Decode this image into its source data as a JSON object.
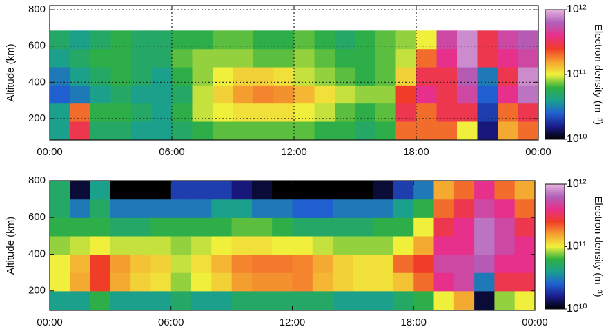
{
  "chart_data": [
    {
      "type": "heatmap",
      "y_label": "Altitude (km)",
      "x": [
        0.5,
        1.5,
        2.5,
        3.5,
        4.5,
        5.5,
        6.5,
        7.5,
        8.5,
        9.5,
        10.5,
        11.5,
        12.5,
        13.5,
        14.5,
        15.5,
        16.5,
        17.5,
        18.5,
        19.5,
        20.5,
        21.5,
        22.5,
        23.5
      ],
      "y": [
        135,
        235,
        335,
        435,
        535,
        635
      ],
      "values": [
        [
          40000000000.0,
          300000000000.0,
          50000000000.0,
          50000000000.0,
          40000000000.0,
          40000000000.0,
          50000000000.0,
          60000000000.0,
          70000000000.0,
          70000000000.0,
          70000000000.0,
          70000000000.0,
          70000000000.0,
          60000000000.0,
          60000000000.0,
          50000000000.0,
          60000000000.0,
          200000000000.0,
          200000000000.0,
          200000000000.0,
          100000000000.0,
          15000000000.0,
          150000000000.0,
          200000000000.0
        ],
        [
          40000000000.0,
          200000000000.0,
          60000000000.0,
          60000000000.0,
          50000000000.0,
          40000000000.0,
          60000000000.0,
          90000000000.0,
          100000000000.0,
          110000000000.0,
          110000000000.0,
          110000000000.0,
          100000000000.0,
          90000000000.0,
          70000000000.0,
          60000000000.0,
          70000000000.0,
          300000000000.0,
          200000000000.0,
          300000000000.0,
          300000000000.0,
          20000000000.0,
          200000000000.0,
          300000000000.0
        ],
        [
          25000000000.0,
          30000000000.0,
          40000000000.0,
          50000000000.0,
          40000000000.0,
          40000000000.0,
          50000000000.0,
          90000000000.0,
          120000000000.0,
          160000000000.0,
          180000000000.0,
          170000000000.0,
          140000000000.0,
          110000000000.0,
          90000000000.0,
          80000000000.0,
          80000000000.0,
          250000000000.0,
          400000000000.0,
          300000000000.0,
          500000000000.0,
          25000000000.0,
          400000000000.0,
          700000000000.0
        ],
        [
          30000000000.0,
          40000000000.0,
          50000000000.0,
          60000000000.0,
          50000000000.0,
          40000000000.0,
          60000000000.0,
          80000000000.0,
          100000000000.0,
          120000000000.0,
          120000000000.0,
          110000000000.0,
          90000000000.0,
          80000000000.0,
          70000000000.0,
          60000000000.0,
          70000000000.0,
          120000000000.0,
          300000000000.0,
          300000000000.0,
          600000000000.0,
          30000000000.0,
          300000000000.0,
          800000000000.0
        ],
        [
          40000000000.0,
          50000000000.0,
          60000000000.0,
          60000000000.0,
          50000000000.0,
          50000000000.0,
          70000000000.0,
          80000000000.0,
          80000000000.0,
          80000000000.0,
          70000000000.0,
          70000000000.0,
          80000000000.0,
          70000000000.0,
          60000000000.0,
          60000000000.0,
          70000000000.0,
          90000000000.0,
          200000000000.0,
          400000000000.0,
          800000000000.0,
          300000000000.0,
          400000000000.0,
          500000000000.0
        ],
        [
          50000000000.0,
          40000000000.0,
          50000000000.0,
          60000000000.0,
          50000000000.0,
          50000000000.0,
          60000000000.0,
          60000000000.0,
          70000000000.0,
          70000000000.0,
          60000000000.0,
          60000000000.0,
          70000000000.0,
          60000000000.0,
          50000000000.0,
          60000000000.0,
          70000000000.0,
          80000000000.0,
          100000000000.0,
          500000000000.0,
          800000000000.0,
          300000000000.0,
          500000000000.0,
          600000000000.0
        ]
      ],
      "xlim": [
        0,
        24
      ],
      "xticks": [
        {
          "value": 0,
          "label": "00:00"
        },
        {
          "value": 6,
          "label": "06:00"
        },
        {
          "value": 12,
          "label": "12:00"
        },
        {
          "value": 18,
          "label": "18:00"
        },
        {
          "value": 24,
          "label": "00:00"
        }
      ],
      "ylim": [
        82,
        823
      ],
      "yticks": [
        200,
        400,
        600,
        800
      ],
      "grid": true,
      "colorbar": {
        "label": "Electron density (m⁻³)",
        "scale": "log",
        "lim": [
          10000000000.0,
          1000000000000.0
        ],
        "ticks": [
          {
            "value": 10000000000.0,
            "label": "10¹⁰"
          },
          {
            "value": 100000000000.0,
            "label": "10¹¹"
          },
          {
            "value": 1000000000000.0,
            "label": "10¹²"
          }
        ],
        "colors": [
          "#000000",
          "#1b1b8a",
          "#2060d0",
          "#1aa08c",
          "#30b040",
          "#f0f03c",
          "#f5a030",
          "#f03c28",
          "#e8308c",
          "#b060b8",
          "#e6b4e0"
        ]
      }
    },
    {
      "type": "heatmap",
      "y_label": "Altitude (km)",
      "x": [
        0.5,
        1.5,
        2.5,
        3.5,
        4.5,
        5.5,
        6.5,
        7.5,
        8.5,
        9.5,
        10.5,
        11.5,
        12.5,
        13.5,
        14.5,
        15.5,
        16.5,
        17.5,
        18.5,
        19.5,
        20.5,
        21.5,
        22.5,
        23.5
      ],
      "y": [
        150,
        250,
        350,
        450,
        550,
        650,
        750
      ],
      "values": [
        [
          40000000000.0,
          40000000000.0,
          60000000000.0,
          40000000000.0,
          40000000000.0,
          40000000000.0,
          50000000000.0,
          40000000000.0,
          40000000000.0,
          50000000000.0,
          50000000000.0,
          50000000000.0,
          50000000000.0,
          50000000000.0,
          40000000000.0,
          40000000000.0,
          40000000000.0,
          50000000000.0,
          60000000000.0,
          100000000000.0,
          150000000000.0,
          12000000000.0,
          80000000000.0,
          100000000000.0
        ],
        [
          100000000000.0,
          150000000000.0,
          250000000000.0,
          150000000000.0,
          120000000000.0,
          110000000000.0,
          80000000000.0,
          100000000000.0,
          120000000000.0,
          160000000000.0,
          170000000000.0,
          170000000000.0,
          180000000000.0,
          140000000000.0,
          120000000000.0,
          110000000000.0,
          110000000000.0,
          130000000000.0,
          200000000000.0,
          400000000000.0,
          500000000000.0,
          30000000000.0,
          300000000000.0,
          300000000000.0
        ],
        [
          100000000000.0,
          140000000000.0,
          250000000000.0,
          160000000000.0,
          130000000000.0,
          120000000000.0,
          90000000000.0,
          110000000000.0,
          140000000000.0,
          180000000000.0,
          190000000000.0,
          190000000000.0,
          180000000000.0,
          150000000000.0,
          120000000000.0,
          110000000000.0,
          110000000000.0,
          200000000000.0,
          250000000000.0,
          500000000000.0,
          500000000000.0,
          600000000000.0,
          400000000000.0,
          400000000000.0
        ],
        [
          80000000000.0,
          90000000000.0,
          100000000000.0,
          90000000000.0,
          90000000000.0,
          90000000000.0,
          80000000000.0,
          90000000000.0,
          100000000000.0,
          110000000000.0,
          110000000000.0,
          100000000000.0,
          100000000000.0,
          90000000000.0,
          80000000000.0,
          80000000000.0,
          80000000000.0,
          100000000000.0,
          150000000000.0,
          400000000000.0,
          400000000000.0,
          700000000000.0,
          500000000000.0,
          400000000000.0
        ],
        [
          60000000000.0,
          60000000000.0,
          60000000000.0,
          50000000000.0,
          50000000000.0,
          60000000000.0,
          60000000000.0,
          60000000000.0,
          60000000000.0,
          70000000000.0,
          70000000000.0,
          60000000000.0,
          50000000000.0,
          50000000000.0,
          50000000000.0,
          50000000000.0,
          60000000000.0,
          60000000000.0,
          100000000000.0,
          300000000000.0,
          400000000000.0,
          700000000000.0,
          500000000000.0,
          300000000000.0
        ],
        [
          50000000000.0,
          30000000000.0,
          50000000000.0,
          30000000000.0,
          30000000000.0,
          30000000000.0,
          30000000000.0,
          30000000000.0,
          40000000000.0,
          40000000000.0,
          30000000000.0,
          30000000000.0,
          25000000000.0,
          25000000000.0,
          30000000000.0,
          30000000000.0,
          30000000000.0,
          40000000000.0,
          60000000000.0,
          200000000000.0,
          300000000000.0,
          500000000000.0,
          400000000000.0,
          200000000000.0
        ],
        [
          50000000000.0,
          12000000000.0,
          40000000000.0,
          10000000000.0,
          10000000000.0,
          10000000000.0,
          20000000000.0,
          20000000000.0,
          20000000000.0,
          15000000000.0,
          12000000000.0,
          10000000000.0,
          10000000000.0,
          10000000000.0,
          10000000000.0,
          10000000000.0,
          12000000000.0,
          20000000000.0,
          30000000000.0,
          150000000000.0,
          200000000000.0,
          400000000000.0,
          200000000000.0,
          150000000000.0
        ]
      ],
      "xlim": [
        0,
        24
      ],
      "xticks": [
        {
          "value": 0,
          "label": "00:00"
        },
        {
          "value": 6,
          "label": "06:00"
        },
        {
          "value": 12,
          "label": "12:00"
        },
        {
          "value": 18,
          "label": "18:00"
        },
        {
          "value": 24,
          "label": "00:00"
        }
      ],
      "ylim": [
        94,
        800
      ],
      "yticks": [
        200,
        400,
        600,
        800
      ],
      "grid": false,
      "colorbar": {
        "label": "Electron density (m⁻³)",
        "scale": "log",
        "lim": [
          10000000000.0,
          1000000000000.0
        ],
        "ticks": [
          {
            "value": 10000000000.0,
            "label": "10¹⁰"
          },
          {
            "value": 100000000000.0,
            "label": "10¹¹"
          },
          {
            "value": 1000000000000.0,
            "label": "10¹²"
          }
        ],
        "colors": [
          "#000000",
          "#1b1b8a",
          "#2060d0",
          "#1aa08c",
          "#30b040",
          "#f0f03c",
          "#f5a030",
          "#f03c28",
          "#e8308c",
          "#b060b8",
          "#e6b4e0"
        ]
      }
    }
  ]
}
